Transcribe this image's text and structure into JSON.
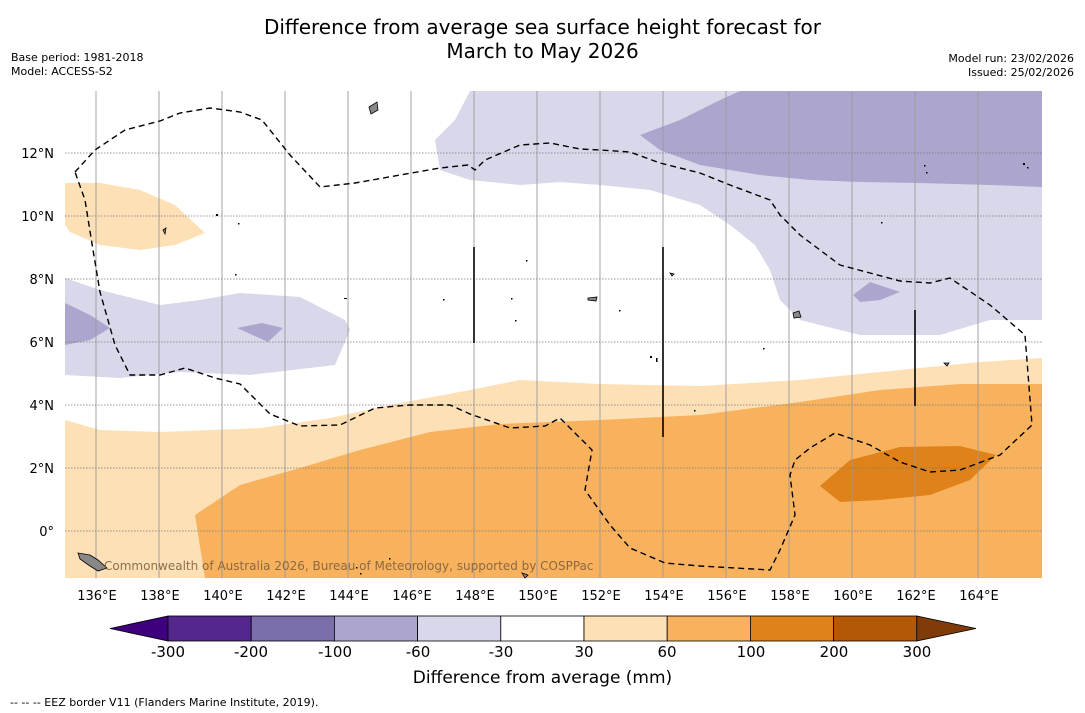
{
  "title_line1": "Difference from average sea surface height forecast for",
  "title_line2": "March to May 2026",
  "base_period": "Base period: 1981-2018",
  "model": "Model: ACCESS-S2",
  "model_run": "Model run: 23/02/2026",
  "issued": "Issued: 25/02/2026",
  "copyright": "Commonwealth of Australia 2026, Bureau of Meteorology, supported by COSPPac",
  "lat_labels": [
    "12°N",
    "10°N",
    "8°N",
    "6°N",
    "4°N",
    "2°N",
    "0°"
  ],
  "lon_labels": [
    "136°E",
    "138°E",
    "140°E",
    "142°E",
    "144°E",
    "146°E",
    "148°E",
    "150°E",
    "152°E",
    "154°E",
    "156°E",
    "158°E",
    "160°E",
    "162°E",
    "164°E"
  ],
  "colorbar": {
    "ticks": [
      "-300",
      "-200",
      "-100",
      "-60",
      "-30",
      "30",
      "60",
      "100",
      "200",
      "300"
    ],
    "colors": [
      "#3f007d",
      "#54278f",
      "#7b6eab",
      "#aca6cf",
      "#d8d8ea",
      "#ffffff",
      "#fde0b6",
      "#f8b25e",
      "#e0821a",
      "#b35806",
      "#7f3b08"
    ],
    "title": "Difference from average (mm)"
  },
  "footer": "--  --  -- EEZ border V11 (Flanders Marine Institute, 2019)."
}
